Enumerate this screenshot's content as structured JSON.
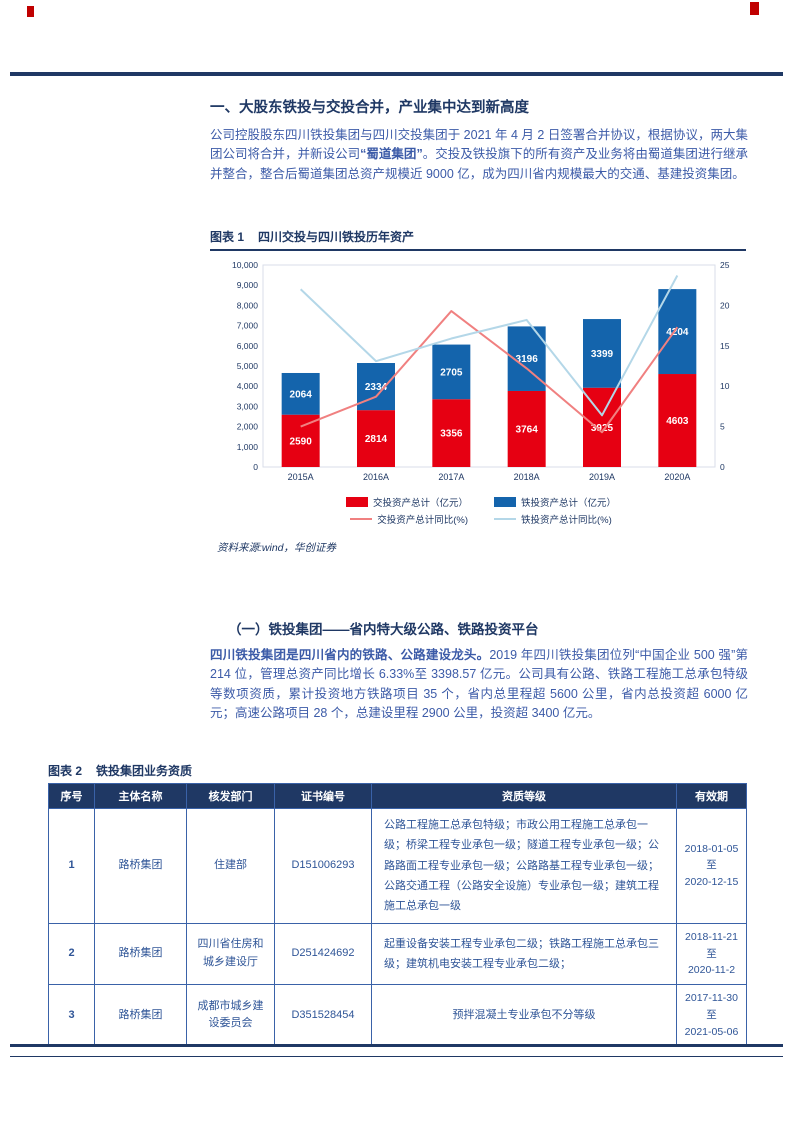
{
  "section1": {
    "title": "一、大股东铁投与交投合并，产业集中达到新高度",
    "para": {
      "seg1": "公司控股股东四川铁投集团与四川交投集团于 2021 年 4 月 2 日签署合并协议，根据协议，两大集团公司将合并，并新设公司",
      "bold": "“蜀道集团”",
      "seg2": "。交投及铁投旗下的所有资产及业务将由蜀道集团进行继承并整合，整合后蜀道集团总资产规模近 9000 亿，成为四川省内规模最大的交通、基建投资集团。"
    }
  },
  "figure1": {
    "caption_label": "图表 1",
    "caption_title": "四川交投与四川铁投历年资产",
    "source": "资料来源:wind，华创证券"
  },
  "chart_data": {
    "type": "bar",
    "subtype": "stacked-bar-with-lines",
    "categories": [
      "2015A",
      "2016A",
      "2017A",
      "2018A",
      "2019A",
      "2020A"
    ],
    "bar_series": [
      {
        "name": "交投资产总计（亿元）",
        "color": "#E60012",
        "values": [
          2590,
          2814,
          3356,
          3764,
          3925,
          4603
        ]
      },
      {
        "name": "铁投资产总计（亿元）",
        "color": "#1464AC",
        "values": [
          2064,
          2334,
          2705,
          3196,
          3399,
          4204
        ]
      }
    ],
    "line_series": [
      {
        "name": "交投资产总计同比(%)",
        "color": "#F08080",
        "values": [
          5.0,
          8.7,
          19.3,
          12.2,
          4.3,
          17.3
        ]
      },
      {
        "name": "铁投资产总计同比(%)",
        "color": "#B4D7E8",
        "values": [
          22.0,
          13.1,
          15.9,
          18.2,
          6.4,
          23.7
        ]
      }
    ],
    "left_axis": {
      "min": 0,
      "max": 10000,
      "step": 1000
    },
    "right_axis": {
      "min": 0,
      "max": 25,
      "step": 5
    },
    "grid": false,
    "legend_position": "bottom"
  },
  "section2": {
    "title": "（一）铁投集团——省内特大级公路、铁路投资平台",
    "para": {
      "bold": "四川铁投集团是四川省内的铁路、公路建设龙头。",
      "rest": "2019 年四川铁投集团位列“中国企业 500 强”第 214 位，管理总资产同比增长 6.33%至 3398.57 亿元。公司具有公路、铁路工程施工总承包特级等数项资质，累计投资地方铁路项目 35 个，省内总里程超 5600 公里，省内总投资超 6000 亿元；高速公路项目 28 个，总建设里程 2900 公里，投资超 3400 亿元。"
    }
  },
  "figure2": {
    "caption_label": "图表 2",
    "caption_title": "铁投集团业务资质"
  },
  "table": {
    "headers": [
      "序号",
      "主体名称",
      "核发部门",
      "证书编号",
      "资质等级",
      "有效期"
    ],
    "rows": [
      {
        "no": "1",
        "entity": "路桥集团",
        "issuer": "住建部",
        "cert": "D151006293",
        "qualifications": "公路工程施工总承包特级；市政公用工程施工总承包一级；桥梁工程专业承包一级；隧道工程专业承包一级；公路路面工程专业承包一级；公路路基工程专业承包一级；公路交通工程（公路安全设施）专业承包一级；建筑工程施工总承包一级",
        "qual_align": "left",
        "validity": "2018-01-05\n至\n2020-12-15"
      },
      {
        "no": "2",
        "entity": "路桥集团",
        "issuer": "四川省住房和城乡建设厅",
        "cert": "D251424692",
        "qualifications": "起重设备安装工程专业承包二级；铁路工程施工总承包三级；建筑机电安装工程专业承包二级；",
        "qual_align": "left",
        "validity": "2018-11-21\n至\n2020-11-2"
      },
      {
        "no": "3",
        "entity": "路桥集团",
        "issuer": "成都市城乡建设委员会",
        "cert": "D351528454",
        "qualifications": "预拌混凝土专业承包不分等级",
        "qual_align": "center",
        "validity": "2017-11-30\n至\n2021-05-06"
      }
    ]
  }
}
